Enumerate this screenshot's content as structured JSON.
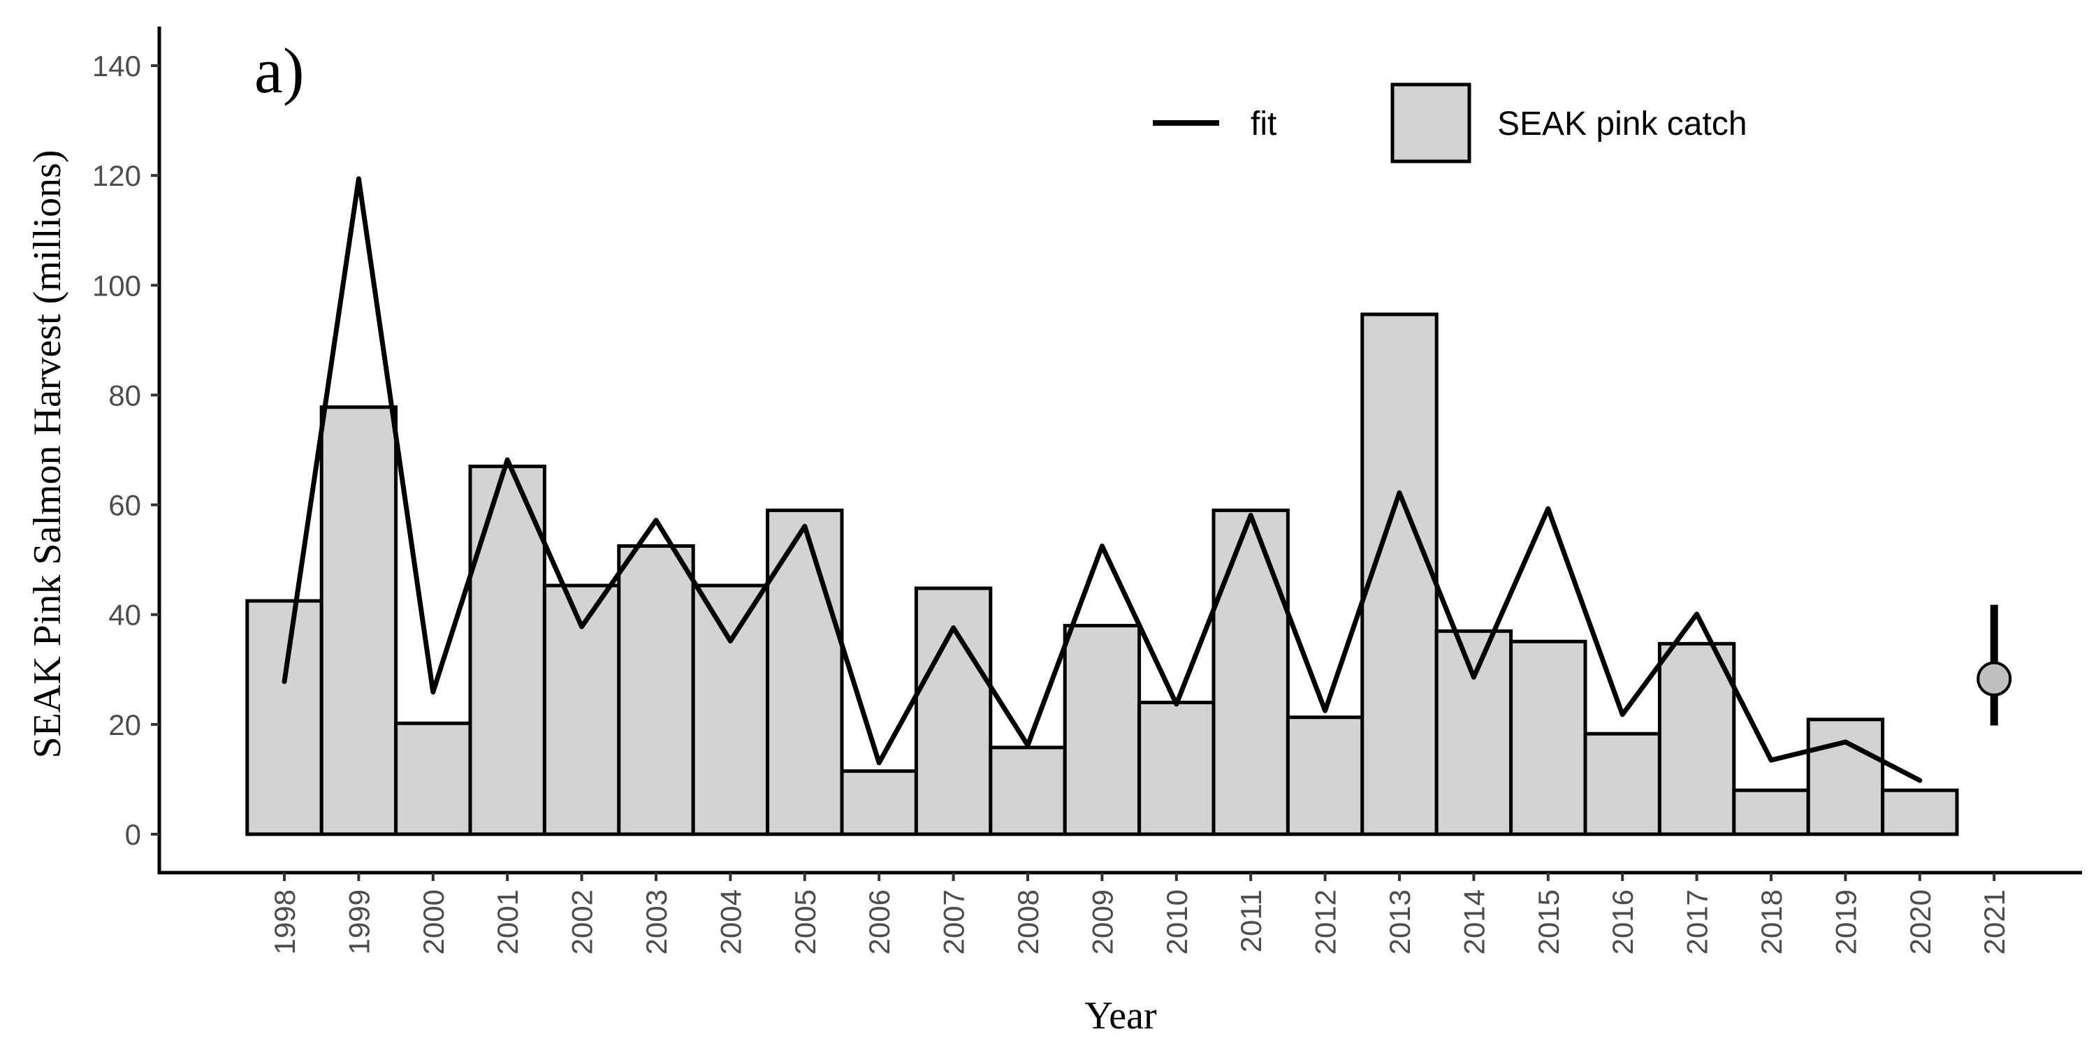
{
  "chart_data": {
    "type": "bar",
    "panel_label": "a)",
    "xlabel": "Year",
    "ylabel": "SEAK Pink Salmon Harvest (millions)",
    "ylim": [
      -6,
      146
    ],
    "yticks": [
      0,
      20,
      40,
      60,
      80,
      100,
      120,
      140
    ],
    "categories": [
      "1998",
      "1999",
      "2000",
      "2001",
      "2002",
      "2003",
      "2004",
      "2005",
      "2006",
      "2007",
      "2008",
      "2009",
      "2010",
      "2011",
      "2012",
      "2013",
      "2014",
      "2015",
      "2016",
      "2017",
      "2018",
      "2019",
      "2020",
      "2021"
    ],
    "series": [
      {
        "name": "SEAK pink catch",
        "kind": "bar",
        "color": "#d3d3d3",
        "values": [
          42.5,
          77.8,
          20.2,
          67.0,
          45.3,
          52.5,
          45.3,
          59.0,
          11.5,
          44.8,
          15.8,
          38.0,
          24.0,
          59.0,
          21.3,
          94.7,
          37.0,
          35.1,
          18.3,
          34.7,
          8.0,
          20.9,
          8.0,
          null
        ]
      },
      {
        "name": "fit",
        "kind": "line",
        "color": "#000000",
        "values": [
          27.8,
          119.4,
          25.9,
          68.2,
          37.8,
          57.2,
          35.2,
          56.1,
          13.0,
          37.6,
          16.2,
          52.5,
          23.7,
          58.1,
          22.5,
          62.2,
          28.6,
          59.3,
          21.8,
          40.1,
          13.5,
          16.8,
          9.8,
          null
        ]
      }
    ],
    "forecast": {
      "year": "2021",
      "value": 28.3,
      "lower": 19.8,
      "upper": 41.8
    },
    "legend": {
      "placement": "top-right",
      "entries": [
        {
          "label": "fit",
          "type": "line"
        },
        {
          "label": "SEAK pink catch",
          "type": "box"
        }
      ]
    },
    "grid": false
  }
}
